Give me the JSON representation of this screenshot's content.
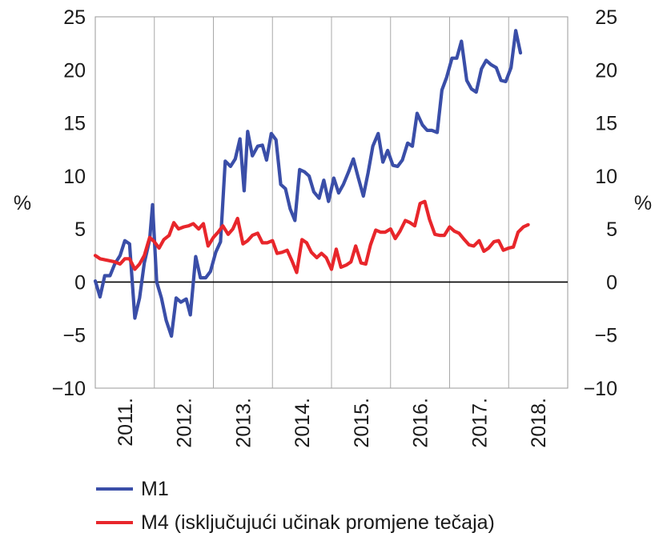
{
  "chart_data": {
    "type": "line",
    "y_axis_label_left": "%",
    "y_axis_label_right": "%",
    "ylim": [
      -10,
      25
    ],
    "y_ticks": [
      25,
      20,
      15,
      10,
      5,
      0,
      -5,
      -10
    ],
    "y_tick_labels": [
      "25",
      "20",
      "15",
      "10",
      "5",
      "0",
      "−5",
      "−10"
    ],
    "x_tick_labels": [
      "2011.",
      "2012.",
      "2013.",
      "2014.",
      "2015.",
      "2016.",
      "2017.",
      "2018."
    ],
    "grid": "vertical lines at year boundaries, horizontal line at 0",
    "legend_position": "bottom-left",
    "series": [
      {
        "name": "M1",
        "color": "#3a4ea8",
        "points": [
          [
            0.0,
            0.1
          ],
          [
            0.08,
            -1.4
          ],
          [
            0.16,
            0.6
          ],
          [
            0.25,
            0.6
          ],
          [
            0.33,
            1.7
          ],
          [
            0.42,
            2.5
          ],
          [
            0.5,
            3.9
          ],
          [
            0.58,
            3.6
          ],
          [
            0.67,
            -3.4
          ],
          [
            0.75,
            -1.5
          ],
          [
            0.83,
            1.8
          ],
          [
            0.92,
            4.0
          ],
          [
            0.97,
            7.3
          ],
          [
            1.04,
            0.0
          ],
          [
            1.12,
            -1.5
          ],
          [
            1.2,
            -3.6
          ],
          [
            1.29,
            -5.1
          ],
          [
            1.37,
            -1.5
          ],
          [
            1.45,
            -1.9
          ],
          [
            1.54,
            -1.6
          ],
          [
            1.61,
            -3.1
          ],
          [
            1.7,
            2.4
          ],
          [
            1.78,
            0.4
          ],
          [
            1.87,
            0.4
          ],
          [
            1.95,
            1.0
          ],
          [
            2.04,
            2.8
          ],
          [
            2.12,
            3.8
          ],
          [
            2.2,
            11.4
          ],
          [
            2.29,
            10.9
          ],
          [
            2.37,
            11.6
          ],
          [
            2.45,
            13.5
          ],
          [
            2.52,
            8.6
          ],
          [
            2.58,
            14.2
          ],
          [
            2.66,
            11.9
          ],
          [
            2.75,
            12.8
          ],
          [
            2.83,
            12.9
          ],
          [
            2.9,
            11.5
          ],
          [
            2.98,
            14.0
          ],
          [
            3.06,
            13.4
          ],
          [
            3.14,
            9.2
          ],
          [
            3.22,
            8.8
          ],
          [
            3.3,
            6.9
          ],
          [
            3.38,
            5.8
          ],
          [
            3.46,
            10.6
          ],
          [
            3.54,
            10.4
          ],
          [
            3.62,
            10.0
          ],
          [
            3.7,
            8.5
          ],
          [
            3.79,
            7.9
          ],
          [
            3.87,
            9.6
          ],
          [
            3.95,
            7.6
          ],
          [
            4.04,
            9.8
          ],
          [
            4.12,
            8.4
          ],
          [
            4.2,
            9.2
          ],
          [
            4.29,
            10.4
          ],
          [
            4.37,
            11.6
          ],
          [
            4.45,
            9.9
          ],
          [
            4.54,
            8.1
          ],
          [
            4.62,
            10.3
          ],
          [
            4.7,
            12.8
          ],
          [
            4.79,
            14.0
          ],
          [
            4.87,
            11.3
          ],
          [
            4.95,
            12.4
          ],
          [
            5.04,
            11.0
          ],
          [
            5.12,
            10.9
          ],
          [
            5.2,
            11.5
          ],
          [
            5.29,
            13.1
          ],
          [
            5.37,
            12.8
          ],
          [
            5.45,
            15.9
          ],
          [
            5.54,
            14.8
          ],
          [
            5.62,
            14.3
          ],
          [
            5.7,
            14.3
          ],
          [
            5.79,
            14.1
          ],
          [
            5.87,
            18.1
          ],
          [
            5.95,
            19.3
          ],
          [
            6.04,
            21.1
          ],
          [
            6.12,
            21.1
          ],
          [
            6.2,
            22.7
          ],
          [
            6.29,
            19.0
          ],
          [
            6.37,
            18.2
          ],
          [
            6.45,
            17.9
          ],
          [
            6.54,
            20.1
          ],
          [
            6.62,
            20.9
          ],
          [
            6.7,
            20.5
          ],
          [
            6.79,
            20.2
          ],
          [
            6.87,
            19.0
          ],
          [
            6.95,
            18.9
          ],
          [
            7.04,
            20.2
          ],
          [
            7.12,
            23.7
          ],
          [
            7.2,
            21.6
          ]
        ]
      },
      {
        "name": "M4 (isključujući učinak promjene tečaja)",
        "color": "#e8262b",
        "points": [
          [
            0.0,
            2.5
          ],
          [
            0.08,
            2.2
          ],
          [
            0.16,
            2.1
          ],
          [
            0.25,
            2.0
          ],
          [
            0.33,
            1.9
          ],
          [
            0.42,
            1.7
          ],
          [
            0.5,
            2.2
          ],
          [
            0.58,
            2.2
          ],
          [
            0.67,
            1.2
          ],
          [
            0.75,
            1.7
          ],
          [
            0.83,
            2.5
          ],
          [
            0.92,
            4.2
          ],
          [
            1.0,
            3.8
          ],
          [
            1.08,
            3.2
          ],
          [
            1.16,
            4.0
          ],
          [
            1.25,
            4.4
          ],
          [
            1.33,
            5.6
          ],
          [
            1.41,
            5.0
          ],
          [
            1.5,
            5.2
          ],
          [
            1.58,
            5.3
          ],
          [
            1.66,
            5.5
          ],
          [
            1.75,
            5.0
          ],
          [
            1.83,
            5.5
          ],
          [
            1.91,
            3.4
          ],
          [
            2.0,
            4.2
          ],
          [
            2.08,
            4.7
          ],
          [
            2.16,
            5.3
          ],
          [
            2.25,
            4.5
          ],
          [
            2.33,
            5.0
          ],
          [
            2.41,
            6.0
          ],
          [
            2.5,
            3.6
          ],
          [
            2.58,
            3.9
          ],
          [
            2.66,
            4.4
          ],
          [
            2.75,
            4.6
          ],
          [
            2.83,
            3.7
          ],
          [
            2.91,
            3.7
          ],
          [
            3.0,
            3.9
          ],
          [
            3.08,
            2.7
          ],
          [
            3.16,
            2.8
          ],
          [
            3.25,
            3.0
          ],
          [
            3.33,
            2.0
          ],
          [
            3.41,
            0.9
          ],
          [
            3.5,
            4.0
          ],
          [
            3.58,
            3.7
          ],
          [
            3.66,
            2.8
          ],
          [
            3.75,
            2.3
          ],
          [
            3.83,
            2.7
          ],
          [
            3.91,
            2.3
          ],
          [
            4.0,
            1.2
          ],
          [
            4.08,
            3.1
          ],
          [
            4.16,
            1.4
          ],
          [
            4.25,
            1.6
          ],
          [
            4.33,
            1.9
          ],
          [
            4.41,
            3.4
          ],
          [
            4.5,
            1.8
          ],
          [
            4.58,
            1.7
          ],
          [
            4.66,
            3.5
          ],
          [
            4.75,
            4.9
          ],
          [
            4.83,
            4.7
          ],
          [
            4.91,
            4.7
          ],
          [
            5.0,
            5.0
          ],
          [
            5.08,
            4.1
          ],
          [
            5.16,
            4.8
          ],
          [
            5.25,
            5.8
          ],
          [
            5.33,
            5.6
          ],
          [
            5.41,
            5.3
          ],
          [
            5.5,
            7.4
          ],
          [
            5.58,
            7.6
          ],
          [
            5.66,
            5.9
          ],
          [
            5.75,
            4.5
          ],
          [
            5.83,
            4.4
          ],
          [
            5.91,
            4.4
          ],
          [
            6.0,
            5.2
          ],
          [
            6.08,
            4.8
          ],
          [
            6.16,
            4.6
          ],
          [
            6.25,
            4.0
          ],
          [
            6.33,
            3.5
          ],
          [
            6.41,
            3.4
          ],
          [
            6.5,
            3.9
          ],
          [
            6.58,
            2.9
          ],
          [
            6.66,
            3.2
          ],
          [
            6.75,
            3.8
          ],
          [
            6.83,
            3.9
          ],
          [
            6.91,
            3.0
          ],
          [
            7.0,
            3.2
          ],
          [
            7.08,
            3.3
          ],
          [
            7.16,
            4.7
          ],
          [
            7.25,
            5.2
          ],
          [
            7.33,
            5.4
          ]
        ]
      }
    ]
  }
}
